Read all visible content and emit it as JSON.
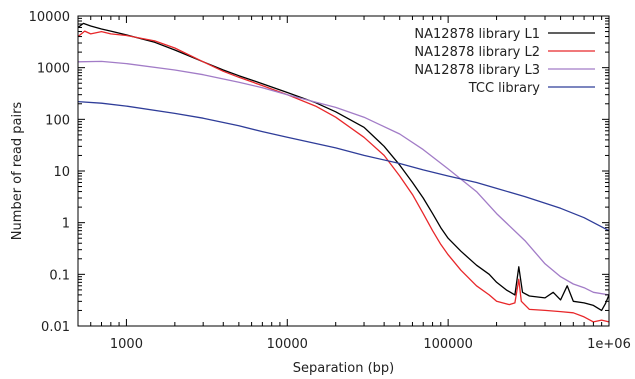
{
  "chart_data": {
    "type": "line",
    "title": "",
    "xlabel": "Separation (bp)",
    "ylabel": "Number of read pairs",
    "x_scale": "log",
    "y_scale": "log",
    "xlim": [
      500,
      1000000
    ],
    "ylim": [
      0.01,
      10000
    ],
    "grid": false,
    "legend_position": "top-right",
    "x_ticks": [
      {
        "value": 1000,
        "label": "1000"
      },
      {
        "value": 10000,
        "label": "10000"
      },
      {
        "value": 100000,
        "label": "100000"
      },
      {
        "value": 1000000,
        "label": "1e+06"
      }
    ],
    "y_ticks": [
      {
        "value": 0.01,
        "label": "0.01"
      },
      {
        "value": 0.1,
        "label": "0.1"
      },
      {
        "value": 1,
        "label": "1"
      },
      {
        "value": 10,
        "label": "10"
      },
      {
        "value": 100,
        "label": "100"
      },
      {
        "value": 1000,
        "label": "1000"
      },
      {
        "value": 10000,
        "label": "10000"
      }
    ],
    "series": [
      {
        "name": "NA12878 library L1",
        "color": "#000000",
        "points": [
          [
            500,
            6000
          ],
          [
            540,
            7200
          ],
          [
            600,
            6400
          ],
          [
            700,
            5600
          ],
          [
            800,
            5100
          ],
          [
            1000,
            4300
          ],
          [
            1500,
            3100
          ],
          [
            2000,
            2200
          ],
          [
            3000,
            1300
          ],
          [
            4000,
            900
          ],
          [
            5000,
            700
          ],
          [
            7000,
            490
          ],
          [
            10000,
            330
          ],
          [
            15000,
            210
          ],
          [
            20000,
            140
          ],
          [
            30000,
            70
          ],
          [
            40000,
            30
          ],
          [
            50000,
            13
          ],
          [
            60000,
            6
          ],
          [
            70000,
            3
          ],
          [
            80000,
            1.5
          ],
          [
            90000,
            0.8
          ],
          [
            100000,
            0.5
          ],
          [
            120000,
            0.28
          ],
          [
            150000,
            0.15
          ],
          [
            180000,
            0.1
          ],
          [
            200000,
            0.07
          ],
          [
            230000,
            0.05
          ],
          [
            260000,
            0.04
          ],
          [
            275000,
            0.14
          ],
          [
            290000,
            0.045
          ],
          [
            320000,
            0.038
          ],
          [
            400000,
            0.035
          ],
          [
            450000,
            0.045
          ],
          [
            500000,
            0.032
          ],
          [
            550000,
            0.06
          ],
          [
            600000,
            0.03
          ],
          [
            700000,
            0.028
          ],
          [
            800000,
            0.025
          ],
          [
            900000,
            0.02
          ],
          [
            950000,
            0.027
          ],
          [
            1000000,
            0.04
          ]
        ]
      },
      {
        "name": "NA12878 library L2",
        "color": "#e8272a",
        "points": [
          [
            500,
            4000
          ],
          [
            550,
            5100
          ],
          [
            600,
            4500
          ],
          [
            700,
            5000
          ],
          [
            800,
            4500
          ],
          [
            1000,
            4200
          ],
          [
            1500,
            3300
          ],
          [
            2000,
            2400
          ],
          [
            3000,
            1300
          ],
          [
            4000,
            850
          ],
          [
            5000,
            650
          ],
          [
            7000,
            450
          ],
          [
            10000,
            300
          ],
          [
            15000,
            180
          ],
          [
            20000,
            110
          ],
          [
            30000,
            45
          ],
          [
            40000,
            20
          ],
          [
            50000,
            8
          ],
          [
            60000,
            3.5
          ],
          [
            70000,
            1.5
          ],
          [
            80000,
            0.7
          ],
          [
            90000,
            0.38
          ],
          [
            100000,
            0.24
          ],
          [
            120000,
            0.12
          ],
          [
            150000,
            0.06
          ],
          [
            180000,
            0.04
          ],
          [
            200000,
            0.03
          ],
          [
            240000,
            0.026
          ],
          [
            260000,
            0.028
          ],
          [
            275000,
            0.08
          ],
          [
            285000,
            0.03
          ],
          [
            320000,
            0.021
          ],
          [
            400000,
            0.02
          ],
          [
            500000,
            0.019
          ],
          [
            600000,
            0.018
          ],
          [
            700000,
            0.015
          ],
          [
            800000,
            0.012
          ],
          [
            900000,
            0.013
          ],
          [
            1000000,
            0.012
          ]
        ]
      },
      {
        "name": "NA12878 library L3",
        "color": "#a27cc7",
        "points": [
          [
            500,
            1300
          ],
          [
            700,
            1320
          ],
          [
            1000,
            1200
          ],
          [
            2000,
            900
          ],
          [
            3000,
            730
          ],
          [
            5000,
            520
          ],
          [
            7000,
            410
          ],
          [
            10000,
            300
          ],
          [
            20000,
            170
          ],
          [
            30000,
            110
          ],
          [
            50000,
            52
          ],
          [
            70000,
            26
          ],
          [
            100000,
            11
          ],
          [
            150000,
            4
          ],
          [
            200000,
            1.5
          ],
          [
            300000,
            0.45
          ],
          [
            400000,
            0.16
          ],
          [
            500000,
            0.09
          ],
          [
            600000,
            0.065
          ],
          [
            700000,
            0.055
          ],
          [
            800000,
            0.045
          ],
          [
            1000000,
            0.04
          ]
        ]
      },
      {
        "name": "TCC library",
        "color": "#2f3d99",
        "points": [
          [
            500,
            220
          ],
          [
            700,
            205
          ],
          [
            1000,
            180
          ],
          [
            2000,
            130
          ],
          [
            3000,
            105
          ],
          [
            5000,
            75
          ],
          [
            7000,
            58
          ],
          [
            10000,
            45
          ],
          [
            20000,
            28
          ],
          [
            30000,
            20
          ],
          [
            50000,
            14
          ],
          [
            70000,
            10.5
          ],
          [
            100000,
            8
          ],
          [
            150000,
            6
          ],
          [
            200000,
            4.6
          ],
          [
            300000,
            3.2
          ],
          [
            500000,
            1.9
          ],
          [
            700000,
            1.25
          ],
          [
            1000000,
            0.7
          ]
        ]
      }
    ]
  }
}
